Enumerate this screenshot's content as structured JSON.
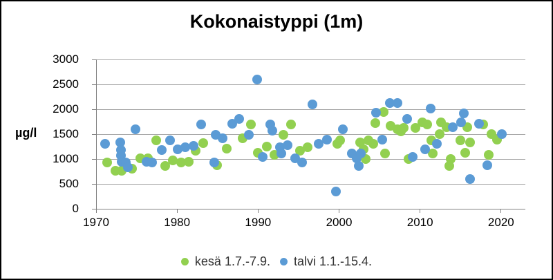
{
  "chart_data": {
    "type": "scatter",
    "title": "Kokonaistyppi (1m)",
    "ylabel": "µg/l",
    "xlabel": "",
    "ylim": [
      0,
      3000
    ],
    "xlim": [
      1970,
      2023
    ],
    "grid": "horizontal",
    "legend_position": "bottom-center",
    "y_ticks": [
      0,
      500,
      1000,
      1500,
      2000,
      2500,
      3000
    ],
    "x_ticks": [
      1970,
      1980,
      1990,
      2000,
      2010,
      2020
    ],
    "series": [
      {
        "name": "kesä 1.7.-7.9.",
        "color": "#92d050",
        "points": [
          [
            1971.4,
            930
          ],
          [
            1972.4,
            770
          ],
          [
            1973.2,
            770
          ],
          [
            1974.4,
            810
          ],
          [
            1975.5,
            1020
          ],
          [
            1976.4,
            1010
          ],
          [
            1977.4,
            1370
          ],
          [
            1978.5,
            860
          ],
          [
            1979.5,
            970
          ],
          [
            1980.5,
            930
          ],
          [
            1981.4,
            950
          ],
          [
            1982.3,
            1160
          ],
          [
            1983.2,
            1320
          ],
          [
            1984.9,
            880
          ],
          [
            1986.1,
            1210
          ],
          [
            1988.1,
            1410
          ],
          [
            1989.1,
            1690
          ],
          [
            1990.0,
            1130
          ],
          [
            1991.1,
            1250
          ],
          [
            1992.0,
            1090
          ],
          [
            1993.1,
            1480
          ],
          [
            1994.1,
            1690
          ],
          [
            1995.2,
            1160
          ],
          [
            1996.1,
            1230
          ],
          [
            1999.8,
            1300
          ],
          [
            2000.1,
            1370
          ],
          [
            2002.6,
            1340
          ],
          [
            2003.0,
            1200
          ],
          [
            2003.3,
            1000
          ],
          [
            2003.6,
            1370
          ],
          [
            2004.2,
            1300
          ],
          [
            2004.5,
            1720
          ],
          [
            2005.5,
            1950
          ],
          [
            2005.7,
            1110
          ],
          [
            2006.4,
            1670
          ],
          [
            2007.2,
            1600
          ],
          [
            2007.6,
            1560
          ],
          [
            2008.0,
            1620
          ],
          [
            2008.6,
            1000
          ],
          [
            2009.4,
            1620
          ],
          [
            2010.3,
            1740
          ],
          [
            2010.9,
            1690
          ],
          [
            2011.4,
            1370
          ],
          [
            2011.6,
            1110
          ],
          [
            2012.4,
            1500
          ],
          [
            2012.6,
            1740
          ],
          [
            2013.3,
            1640
          ],
          [
            2013.6,
            860
          ],
          [
            2013.8,
            1000
          ],
          [
            2015.0,
            1370
          ],
          [
            2015.6,
            1130
          ],
          [
            2015.8,
            1640
          ],
          [
            2016.2,
            1340
          ],
          [
            2017.8,
            1690
          ],
          [
            2018.5,
            1090
          ],
          [
            2018.8,
            1500
          ],
          [
            2019.5,
            1390
          ]
        ]
      },
      {
        "name": "talvi 1.1.-15.4.",
        "color": "#5b9bd5",
        "points": [
          [
            1971.1,
            1300
          ],
          [
            1973.0,
            1340
          ],
          [
            1973.1,
            1180
          ],
          [
            1973.1,
            1070
          ],
          [
            1973.2,
            950
          ],
          [
            1973.7,
            930
          ],
          [
            1973.9,
            830
          ],
          [
            1974.9,
            1600
          ],
          [
            1976.2,
            950
          ],
          [
            1976.9,
            930
          ],
          [
            1978.1,
            1180
          ],
          [
            1979.1,
            1370
          ],
          [
            1980.1,
            1200
          ],
          [
            1981.0,
            1230
          ],
          [
            1982.0,
            1270
          ],
          [
            1983.0,
            1700
          ],
          [
            1984.6,
            930
          ],
          [
            1984.8,
            1490
          ],
          [
            1985.6,
            1410
          ],
          [
            1986.8,
            1710
          ],
          [
            1987.7,
            1810
          ],
          [
            1988.9,
            1480
          ],
          [
            1989.9,
            2600
          ],
          [
            1990.6,
            1040
          ],
          [
            1991.5,
            1690
          ],
          [
            1991.8,
            1570
          ],
          [
            1992.7,
            1230
          ],
          [
            1992.9,
            1110
          ],
          [
            1993.6,
            1280
          ],
          [
            1994.6,
            1010
          ],
          [
            1995.4,
            930
          ],
          [
            1996.7,
            2100
          ],
          [
            1997.5,
            1300
          ],
          [
            1998.5,
            1390
          ],
          [
            1999.6,
            350
          ],
          [
            2000.5,
            1600
          ],
          [
            2001.6,
            1110
          ],
          [
            2002.2,
            1020
          ],
          [
            2002.4,
            860
          ],
          [
            2002.7,
            1110
          ],
          [
            2004.6,
            1930
          ],
          [
            2005.3,
            1390
          ],
          [
            2006.3,
            2130
          ],
          [
            2007.2,
            2130
          ],
          [
            2008.4,
            1810
          ],
          [
            2009.1,
            1040
          ],
          [
            2010.6,
            1200
          ],
          [
            2011.3,
            2010
          ],
          [
            2012.1,
            1300
          ],
          [
            2014.0,
            1640
          ],
          [
            2015.1,
            1740
          ],
          [
            2015.4,
            1920
          ],
          [
            2016.2,
            600
          ],
          [
            2017.3,
            1710
          ],
          [
            2018.3,
            880
          ],
          [
            2020.1,
            1500
          ]
        ]
      }
    ]
  }
}
